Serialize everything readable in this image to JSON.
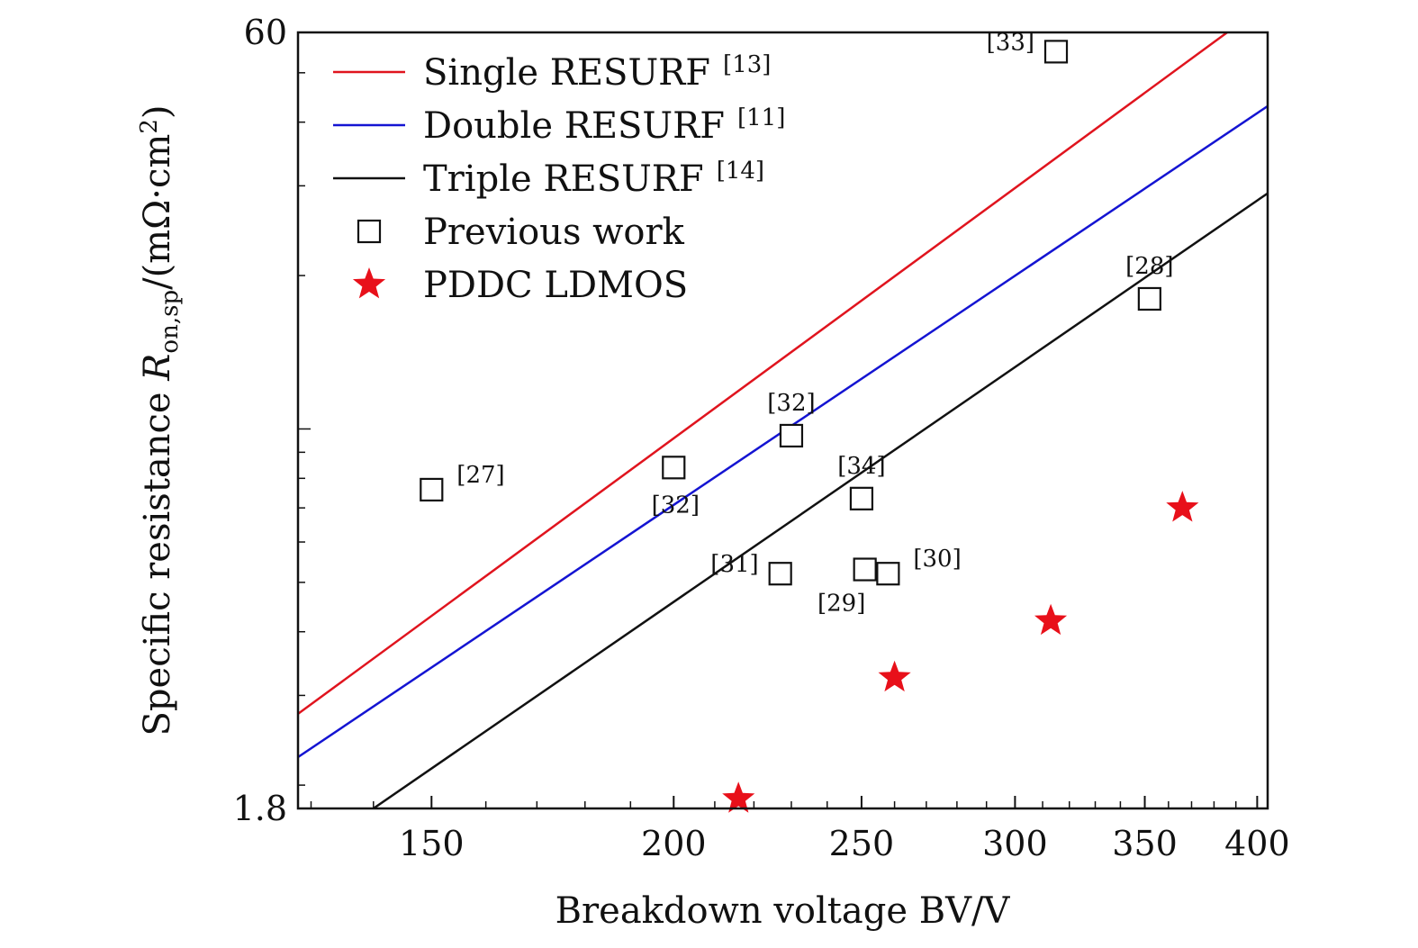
{
  "chart_data": {
    "type": "scatter",
    "x_scale": "log",
    "y_scale": "log",
    "xlabel": "Breakdown voltage BV/V",
    "ylabel_parts": {
      "text": "Specific resistance",
      "symbol": "R",
      "subscript": "on,sp",
      "unit_prefix": "/(m",
      "unit_omega": "Ω",
      "unit_cm": "·cm",
      "unit_sup": "2",
      "unit_suffix": ")"
    },
    "xlim": [
      128,
      405
    ],
    "ylim": [
      1.8,
      60
    ],
    "x_ticks": [
      150,
      200,
      250,
      300,
      350,
      400
    ],
    "x_tick_labels": [
      "150",
      "200",
      "250",
      "300",
      "350",
      "400"
    ],
    "y_ticks": [
      1.8,
      60
    ],
    "y_tick_labels": [
      "1.8",
      "60"
    ],
    "lines": [
      {
        "name": "Single RESURF",
        "ref": "[13]",
        "color": "#e0141e",
        "x": [
          128,
          386
        ],
        "y": [
          2.76,
          60
        ]
      },
      {
        "name": "Double RESURF",
        "ref": "[11]",
        "color": "#1414d2",
        "x": [
          128,
          405
        ],
        "y": [
          2.27,
          43
        ]
      },
      {
        "name": "Triple RESURF",
        "ref": "[14]",
        "color": "#111111",
        "x": [
          140,
          405
        ],
        "y": [
          1.8,
          29
        ]
      }
    ],
    "previous_work": {
      "name": "Previous work",
      "points": [
        {
          "x": 150,
          "y": 7.6,
          "label": "[27]",
          "label_pos": "right"
        },
        {
          "x": 200,
          "y": 8.4,
          "label": "[32]",
          "label_pos": "below"
        },
        {
          "x": 230,
          "y": 9.7,
          "label": "[32]",
          "label_pos": "above"
        },
        {
          "x": 227,
          "y": 5.2,
          "label": "[31]",
          "label_pos": "left"
        },
        {
          "x": 250,
          "y": 7.3,
          "label": "[34]",
          "label_pos": "above"
        },
        {
          "x": 251,
          "y": 5.3,
          "label": "[29]",
          "label_pos": "below-left"
        },
        {
          "x": 258,
          "y": 5.2,
          "label": "[30]",
          "label_pos": "right"
        },
        {
          "x": 315,
          "y": 55,
          "label": "[33]",
          "label_pos": "left"
        },
        {
          "x": 352,
          "y": 18,
          "label": "[28]",
          "label_pos": "above"
        }
      ]
    },
    "pddc_ldmos": {
      "name": "PDDC LDMOS",
      "color": "#e8101a",
      "points": [
        {
          "x": 216,
          "y": 1.88
        },
        {
          "x": 260,
          "y": 3.25
        },
        {
          "x": 313,
          "y": 4.2
        },
        {
          "x": 366,
          "y": 7.0
        }
      ]
    },
    "legend": {
      "position": "top-left",
      "entries": [
        {
          "label": "Single RESURF",
          "ref": "[13]",
          "kind": "line",
          "color": "#e0141e"
        },
        {
          "label": "Double RESURF",
          "ref": "[11]",
          "kind": "line",
          "color": "#1414d2"
        },
        {
          "label": "Triple RESURF",
          "ref": "[14]",
          "kind": "line",
          "color": "#111111"
        },
        {
          "label": "Previous work",
          "ref": "",
          "kind": "square",
          "color": "#111111"
        },
        {
          "label": "PDDC LDMOS",
          "ref": "",
          "kind": "star",
          "color": "#e8101a"
        }
      ]
    }
  }
}
